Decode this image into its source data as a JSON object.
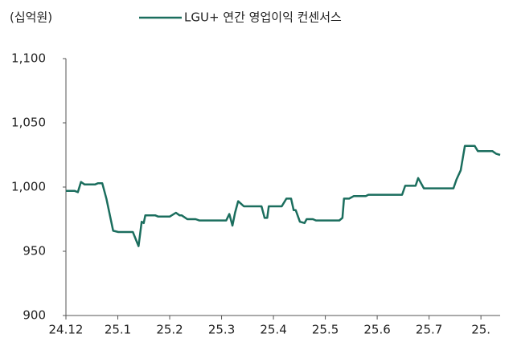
{
  "chart_data": {
    "type": "line",
    "unit_label": "(십억원)",
    "series": [
      {
        "name": "LGU+ 연간 영업이익 컨센서스",
        "color": "#1b6e5e",
        "values": [
          997,
          997,
          996,
          1004,
          1002,
          1002,
          1003,
          1003,
          991,
          966,
          965,
          965,
          954,
          973,
          972,
          978,
          978,
          977,
          977,
          980,
          978,
          978,
          975,
          975,
          974,
          974,
          974,
          979,
          970,
          980,
          989,
          985,
          985,
          976,
          976,
          985,
          985,
          991,
          991,
          982,
          982,
          973,
          972,
          975,
          975,
          974,
          974,
          976,
          991,
          991,
          993,
          993,
          994,
          994,
          1001,
          1001,
          1007,
          999,
          999,
          1006,
          1013,
          1032,
          1032,
          1028,
          1028,
          1026,
          1025
        ]
      }
    ],
    "x": [
      0,
      0.17,
      0.23,
      0.29,
      0.36,
      0.56,
      0.62,
      0.7,
      0.78,
      0.91,
      1.01,
      1.29,
      1.4,
      1.46,
      1.5,
      1.53,
      1.72,
      1.78,
      2.0,
      2.12,
      2.19,
      2.23,
      2.34,
      2.5,
      2.57,
      2.85,
      3.09,
      3.15,
      3.21,
      3.26,
      3.32,
      3.43,
      3.77,
      3.83,
      3.88,
      3.91,
      4.16,
      4.25,
      4.34,
      4.39,
      4.43,
      4.51,
      4.6,
      4.64,
      4.76,
      4.82,
      5.27,
      5.33,
      5.36,
      5.46,
      5.55,
      5.78,
      5.83,
      6.48,
      6.54,
      6.74,
      6.79,
      6.9,
      7.47,
      7.53,
      7.61,
      7.69,
      7.88,
      7.94,
      8.22,
      8.29,
      8.37
    ],
    "xlim": [
      0,
      8.37
    ],
    "xticks": [
      {
        "value": 0,
        "label": "24.12"
      },
      {
        "value": 1,
        "label": "25.1"
      },
      {
        "value": 2,
        "label": "25.2"
      },
      {
        "value": 3,
        "label": "25.3"
      },
      {
        "value": 4,
        "label": "25.4"
      },
      {
        "value": 5,
        "label": "25.5"
      },
      {
        "value": 6,
        "label": "25.6"
      },
      {
        "value": 7,
        "label": "25.7"
      },
      {
        "value": 8,
        "label": "25."
      }
    ],
    "ylim": [
      900,
      1100
    ],
    "yticks": [
      900,
      950,
      {
        "value": 1000,
        "label": "1,000"
      },
      {
        "value": 1050,
        "label": "1,050"
      },
      {
        "value": 1100,
        "label": "1,100"
      }
    ],
    "grid": false
  }
}
